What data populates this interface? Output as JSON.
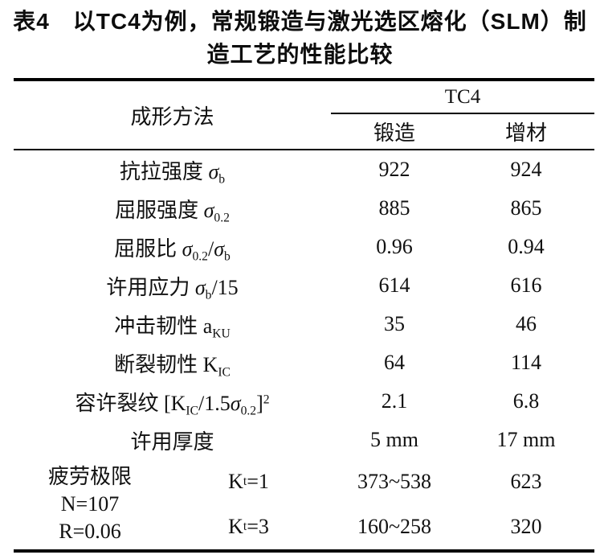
{
  "title": {
    "line1": "表4　以TC4为例，常规锻造与激光选区熔化（SLM）制",
    "line2": "造工艺的性能比较"
  },
  "table": {
    "header": {
      "method_label": "成形方法",
      "group_label": "TC4",
      "col_forging": "锻造",
      "col_additive": "增材"
    },
    "rows": [
      {
        "label": "抗拉强度 *σ*_{b}",
        "forging": "922",
        "additive": "924"
      },
      {
        "label": "屈服强度 *σ*_{0.2}",
        "forging": "885",
        "additive": "865"
      },
      {
        "label": "屈服比 *σ*_{0.2}/*σ*_{b}",
        "forging": "0.96",
        "additive": "0.94"
      },
      {
        "label": "许用应力 *σ*_{b}/15",
        "forging": "614",
        "additive": "616"
      },
      {
        "label": "冲击韧性 a_{KU}",
        "forging": "35",
        "additive": "46"
      },
      {
        "label": "断裂韧性 K_{IC}",
        "forging": "64",
        "additive": "114"
      },
      {
        "label": "容许裂纹 [K_{IC}/1.5*σ*_{0.2}]^{2}",
        "forging": "2.1",
        "additive": "6.8"
      },
      {
        "label": "许用厚度",
        "forging": "5 mm",
        "additive": "17 mm"
      }
    ],
    "fatigue": {
      "label_lines": [
        "疲劳极限",
        "N=107",
        "R=0.06"
      ],
      "sub_rows": [
        {
          "kt": "K_{t}=1",
          "forging": "373~538",
          "additive": "623"
        },
        {
          "kt": "K_{t}=3",
          "forging": "160~258",
          "additive": "320"
        }
      ]
    }
  },
  "colors": {
    "background": "#ffffff",
    "text": "#111111",
    "border": "#000000"
  }
}
